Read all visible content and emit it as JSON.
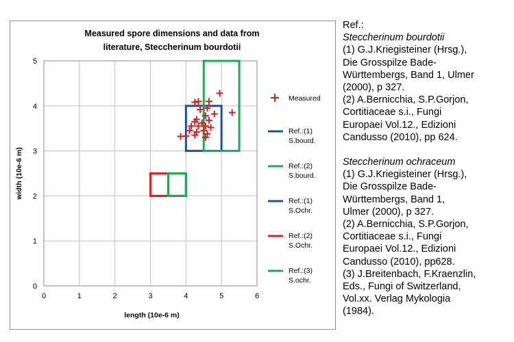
{
  "chart_data": {
    "type": "scatter",
    "title_lines": [
      "Measured spore dimensions and data from",
      "literature, Steccherinum bourdotii"
    ],
    "xlabel": "length (10e-6 m)",
    "ylabel": "width (10e-6 m)",
    "xlim": [
      0,
      6
    ],
    "ylim": [
      0,
      5
    ],
    "x_ticks": [
      "0",
      "1",
      "2",
      "3",
      "4",
      "5",
      "6"
    ],
    "y_ticks": [
      "0",
      "1",
      "2",
      "3",
      "4",
      "5"
    ],
    "grid": true,
    "legend_position": "right",
    "series": [
      {
        "name": "Measured",
        "color": "#cc2222",
        "marker": "plus",
        "points": [
          [
            4.25,
            4.08
          ],
          [
            4.35,
            4.1
          ],
          [
            4.65,
            4.1
          ],
          [
            4.95,
            4.28
          ],
          [
            5.3,
            3.85
          ],
          [
            4.4,
            3.92
          ],
          [
            4.6,
            3.95
          ],
          [
            4.8,
            3.82
          ],
          [
            4.55,
            3.78
          ],
          [
            4.3,
            3.7
          ],
          [
            4.25,
            3.65
          ],
          [
            4.45,
            3.62
          ],
          [
            4.65,
            3.68
          ],
          [
            4.15,
            3.55
          ],
          [
            4.35,
            3.55
          ],
          [
            4.55,
            3.55
          ],
          [
            4.7,
            3.52
          ],
          [
            4.1,
            3.45
          ],
          [
            4.3,
            3.42
          ],
          [
            4.5,
            3.45
          ],
          [
            4.6,
            3.38
          ],
          [
            4.0,
            3.33
          ],
          [
            4.25,
            3.35
          ],
          [
            3.85,
            3.32
          ],
          [
            4.55,
            3.3
          ]
        ]
      },
      {
        "name": "Ref.:(1) S.bourd.",
        "label_lines": [
          "Ref.:(1)",
          "S.bourd."
        ],
        "color": "#1f4ea8",
        "rect": {
          "x": [
            4.0,
            5.0
          ],
          "y": [
            3.0,
            4.0
          ]
        }
      },
      {
        "name": "Ref.:(2) S.bourd.",
        "label_lines": [
          "Ref.:(2)",
          "S.bourd."
        ],
        "color": "#22a852",
        "rect": {
          "x": [
            4.5,
            5.5
          ],
          "y": [
            3.0,
            5.0
          ]
        }
      },
      {
        "name": "Ref.:(1) S.Ochr.",
        "label_lines": [
          "Ref.:(1)",
          "S.Ochr."
        ],
        "color": "#1f4ea8",
        "rect": {
          "x": [
            3.0,
            4.0
          ],
          "y": [
            2.0,
            2.5
          ]
        }
      },
      {
        "name": "Ref.:(2) S.Ochr.",
        "label_lines": [
          "Ref.:(2)",
          "S.Ochr."
        ],
        "color": "#dd2222",
        "rect": {
          "x": [
            3.0,
            3.5
          ],
          "y": [
            2.0,
            2.5
          ]
        }
      },
      {
        "name": "Ref.:(3) S.ochr.",
        "label_lines": [
          "Ref.:(3)",
          "S.ochr."
        ],
        "color": "#22a852",
        "rect": {
          "x": [
            3.5,
            4.0
          ],
          "y": [
            2.0,
            2.5
          ]
        }
      }
    ]
  },
  "references": {
    "heading": "Ref.:",
    "species1": "Steccherinum bourdotii",
    "s1_lines": [
      "(1) G.J.Kriegisteiner (Hrsg.),",
      "Die Grosspilze Bade-",
      "Württembergs, Band 1, Ulmer",
      "(2000), p 327.",
      "(2) A.Bernicchia, S.P.Gorjon,",
      "Cortitiaceae s.i., Fungi",
      "Europaei Vol.12., Edizioni",
      "Candusso (2010), pp 624."
    ],
    "species2": "Steccherinum ochraceum",
    "s2_lines": [
      "(1) G.J.Kriegisteiner (Hrsg.),",
      "Die Grosspilze Bade-",
      "Württembergs, Band 1,",
      "Ulmer (2000), p 327.",
      "(2) A.Bernicchia, S.P.Gorjon,",
      "Cortitiaceae s.i., Fungi",
      "Europaei Vol.12., Edizioni",
      "Candusso (2010), pp628.",
      "(3) J.Breitenbach, F.Kraenzlin,",
      "Eds., Fungi of Switzerland,",
      "Vol.xx. Verlag Mykologia",
      "(1984)."
    ]
  }
}
